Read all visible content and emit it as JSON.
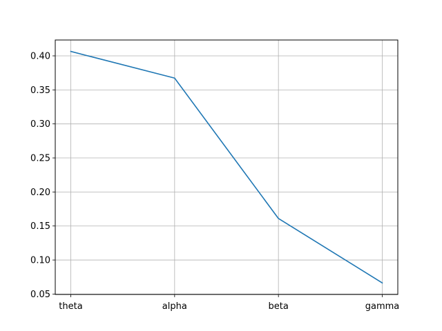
{
  "chart_data": {
    "type": "line",
    "categories": [
      "theta",
      "alpha",
      "beta",
      "gamma"
    ],
    "series": [
      {
        "values": [
          0.4065,
          0.3673,
          0.161,
          0.0664
        ]
      }
    ],
    "ylim": [
      0.0494,
      0.4233
    ],
    "yticks": [
      0.05,
      0.1,
      0.15,
      0.2,
      0.25,
      0.3,
      0.35,
      0.4
    ],
    "ytick_labels": [
      "0.05",
      "0.10",
      "0.15",
      "0.20",
      "0.25",
      "0.30",
      "0.35",
      "0.40"
    ],
    "grid": true,
    "line_color": "#1f77b4",
    "grid_color": "#b0b0b0"
  }
}
